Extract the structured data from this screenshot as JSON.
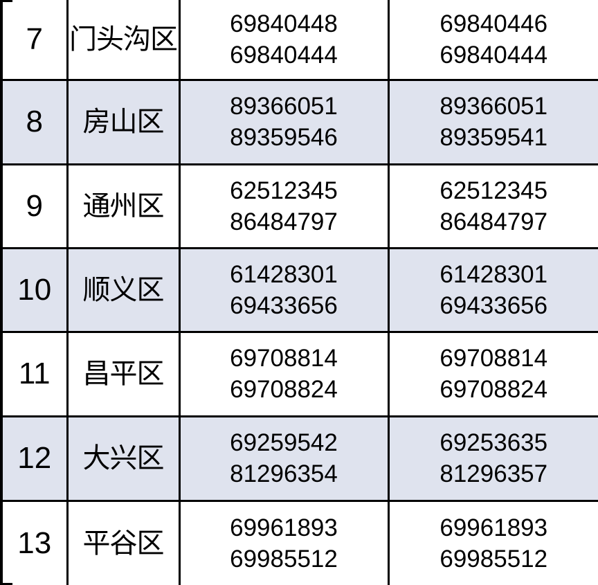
{
  "page": {
    "background_color": "#ffffff",
    "text_color": "#000000",
    "border_color": "#000000",
    "row_shade_color": "#dfe3ee"
  },
  "table": {
    "description": "district-contact-phone-table",
    "rows": [
      {
        "no": "7",
        "district": "门头沟区",
        "phones_a": [
          "69840448",
          "69840444"
        ],
        "phones_b": [
          "69840446",
          "69840444"
        ],
        "shaded": false
      },
      {
        "no": "8",
        "district": "房山区",
        "phones_a": [
          "89366051",
          "89359546"
        ],
        "phones_b": [
          "89366051",
          "89359541"
        ],
        "shaded": true
      },
      {
        "no": "9",
        "district": "通州区",
        "phones_a": [
          "62512345",
          "86484797"
        ],
        "phones_b": [
          "62512345",
          "86484797"
        ],
        "shaded": false
      },
      {
        "no": "10",
        "district": "顺义区",
        "phones_a": [
          "61428301",
          "69433656"
        ],
        "phones_b": [
          "61428301",
          "69433656"
        ],
        "shaded": true
      },
      {
        "no": "11",
        "district": "昌平区",
        "phones_a": [
          "69708814",
          "69708824"
        ],
        "phones_b": [
          "69708814",
          "69708824"
        ],
        "shaded": false
      },
      {
        "no": "12",
        "district": "大兴区",
        "phones_a": [
          "69259542",
          "81296354"
        ],
        "phones_b": [
          "69253635",
          "81296357"
        ],
        "shaded": true
      },
      {
        "no": "13",
        "district": "平谷区",
        "phones_a": [
          "69961893",
          "69985512"
        ],
        "phones_b": [
          "69961893",
          "69985512"
        ],
        "shaded": false
      }
    ]
  }
}
